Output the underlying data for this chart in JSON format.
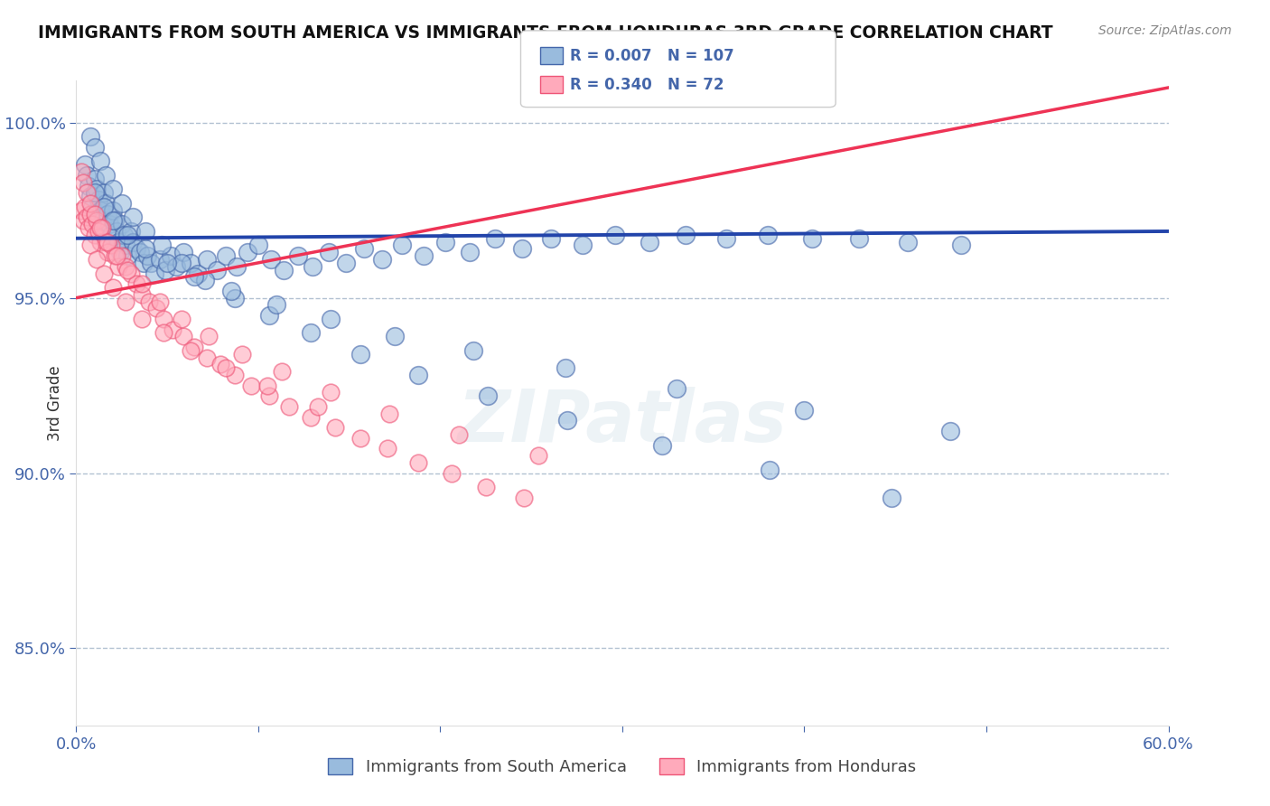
{
  "title": "IMMIGRANTS FROM SOUTH AMERICA VS IMMIGRANTS FROM HONDURAS 3RD GRADE CORRELATION CHART",
  "source": "Source: ZipAtlas.com",
  "xlabel_blue": "Immigrants from South America",
  "xlabel_pink": "Immigrants from Honduras",
  "ylabel": "3rd Grade",
  "xmin": 0.0,
  "xmax": 0.6,
  "ymin": 0.828,
  "ymax": 1.012,
  "yticks": [
    0.85,
    0.9,
    0.95,
    1.0
  ],
  "ytick_labels": [
    "85.0%",
    "90.0%",
    "95.0%",
    "100.0%"
  ],
  "R_blue": 0.007,
  "N_blue": 107,
  "R_pink": 0.34,
  "N_pink": 72,
  "blue_color": "#99BBDD",
  "blue_edge_color": "#4466AA",
  "pink_color": "#FFAABB",
  "pink_edge_color": "#EE5577",
  "blue_line_color": "#2244AA",
  "pink_line_color": "#EE3355",
  "grid_color": "#AABBCC",
  "axis_label_color": "#4466AA",
  "title_color": "#111111",
  "watermark_color": "#CCDDE8",
  "background": "#FFFFFF",
  "blue_trend_y0": 0.967,
  "blue_trend_y1": 0.969,
  "pink_trend_y0": 0.95,
  "pink_trend_y1": 1.01,
  "blue_scatter_x": [
    0.005,
    0.006,
    0.007,
    0.008,
    0.009,
    0.01,
    0.011,
    0.012,
    0.013,
    0.014,
    0.015,
    0.016,
    0.017,
    0.018,
    0.019,
    0.02,
    0.021,
    0.022,
    0.023,
    0.024,
    0.025,
    0.026,
    0.027,
    0.028,
    0.03,
    0.031,
    0.033,
    0.035,
    0.037,
    0.039,
    0.041,
    0.043,
    0.046,
    0.049,
    0.052,
    0.055,
    0.059,
    0.063,
    0.067,
    0.072,
    0.077,
    0.082,
    0.088,
    0.094,
    0.1,
    0.107,
    0.114,
    0.122,
    0.13,
    0.139,
    0.148,
    0.158,
    0.168,
    0.179,
    0.191,
    0.203,
    0.216,
    0.23,
    0.245,
    0.261,
    0.278,
    0.296,
    0.315,
    0.335,
    0.357,
    0.38,
    0.404,
    0.43,
    0.457,
    0.486,
    0.008,
    0.01,
    0.013,
    0.016,
    0.02,
    0.025,
    0.031,
    0.038,
    0.047,
    0.058,
    0.071,
    0.087,
    0.106,
    0.129,
    0.156,
    0.188,
    0.226,
    0.27,
    0.322,
    0.381,
    0.448,
    0.01,
    0.015,
    0.02,
    0.028,
    0.038,
    0.05,
    0.065,
    0.085,
    0.11,
    0.14,
    0.175,
    0.218,
    0.269,
    0.33,
    0.4,
    0.48
  ],
  "blue_scatter_y": [
    0.988,
    0.985,
    0.982,
    0.979,
    0.976,
    0.984,
    0.981,
    0.978,
    0.975,
    0.972,
    0.98,
    0.977,
    0.974,
    0.971,
    0.968,
    0.975,
    0.972,
    0.969,
    0.966,
    0.963,
    0.971,
    0.968,
    0.965,
    0.962,
    0.969,
    0.966,
    0.964,
    0.963,
    0.96,
    0.962,
    0.96,
    0.957,
    0.961,
    0.958,
    0.962,
    0.959,
    0.963,
    0.96,
    0.957,
    0.961,
    0.958,
    0.962,
    0.959,
    0.963,
    0.965,
    0.961,
    0.958,
    0.962,
    0.959,
    0.963,
    0.96,
    0.964,
    0.961,
    0.965,
    0.962,
    0.966,
    0.963,
    0.967,
    0.964,
    0.967,
    0.965,
    0.968,
    0.966,
    0.968,
    0.967,
    0.968,
    0.967,
    0.967,
    0.966,
    0.965,
    0.996,
    0.993,
    0.989,
    0.985,
    0.981,
    0.977,
    0.973,
    0.969,
    0.965,
    0.96,
    0.955,
    0.95,
    0.945,
    0.94,
    0.934,
    0.928,
    0.922,
    0.915,
    0.908,
    0.901,
    0.893,
    0.98,
    0.976,
    0.972,
    0.968,
    0.964,
    0.96,
    0.956,
    0.952,
    0.948,
    0.944,
    0.939,
    0.935,
    0.93,
    0.924,
    0.918,
    0.912
  ],
  "pink_scatter_x": [
    0.003,
    0.004,
    0.005,
    0.006,
    0.007,
    0.008,
    0.009,
    0.01,
    0.011,
    0.012,
    0.013,
    0.014,
    0.016,
    0.017,
    0.019,
    0.021,
    0.023,
    0.025,
    0.027,
    0.03,
    0.033,
    0.036,
    0.04,
    0.044,
    0.048,
    0.053,
    0.059,
    0.065,
    0.072,
    0.079,
    0.087,
    0.096,
    0.106,
    0.117,
    0.129,
    0.142,
    0.156,
    0.171,
    0.188,
    0.206,
    0.225,
    0.246,
    0.003,
    0.004,
    0.006,
    0.008,
    0.01,
    0.013,
    0.017,
    0.022,
    0.028,
    0.036,
    0.046,
    0.058,
    0.073,
    0.091,
    0.113,
    0.14,
    0.172,
    0.21,
    0.254,
    0.008,
    0.011,
    0.015,
    0.02,
    0.027,
    0.036,
    0.048,
    0.063,
    0.082,
    0.105,
    0.133
  ],
  "pink_scatter_y": [
    0.975,
    0.972,
    0.976,
    0.973,
    0.97,
    0.974,
    0.971,
    0.968,
    0.972,
    0.969,
    0.966,
    0.97,
    0.966,
    0.963,
    0.965,
    0.962,
    0.959,
    0.962,
    0.959,
    0.957,
    0.954,
    0.951,
    0.949,
    0.947,
    0.944,
    0.941,
    0.939,
    0.936,
    0.933,
    0.931,
    0.928,
    0.925,
    0.922,
    0.919,
    0.916,
    0.913,
    0.91,
    0.907,
    0.903,
    0.9,
    0.896,
    0.893,
    0.986,
    0.983,
    0.98,
    0.977,
    0.974,
    0.97,
    0.966,
    0.962,
    0.958,
    0.954,
    0.949,
    0.944,
    0.939,
    0.934,
    0.929,
    0.923,
    0.917,
    0.911,
    0.905,
    0.965,
    0.961,
    0.957,
    0.953,
    0.949,
    0.944,
    0.94,
    0.935,
    0.93,
    0.925,
    0.919
  ]
}
